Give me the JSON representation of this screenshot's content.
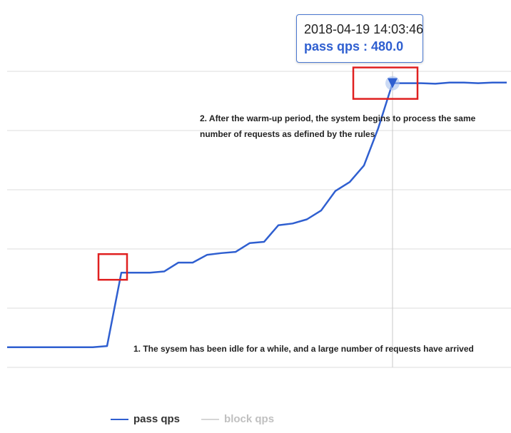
{
  "chart_data": {
    "type": "line",
    "categories": [
      null,
      null,
      null,
      null,
      null,
      null,
      null,
      null,
      null,
      null,
      null,
      null,
      null,
      null,
      null,
      null,
      null,
      null,
      null,
      null,
      null,
      null,
      null,
      null,
      null,
      null,
      null,
      null,
      null,
      null,
      null,
      null,
      null,
      null,
      null,
      null
    ],
    "series": [
      {
        "name": "pass qps",
        "color": "#2f5fd0",
        "values": [
          34,
          34,
          34,
          34,
          34,
          34,
          34,
          36,
          160,
          160,
          160,
          162,
          177,
          177,
          190,
          193,
          195,
          210,
          212,
          240,
          243,
          250,
          265,
          298,
          313,
          341,
          404,
          480,
          480,
          480,
          479,
          481,
          481,
          480,
          481,
          481
        ]
      },
      {
        "name": "block qps",
        "color": "#cccccc",
        "visible": false
      }
    ],
    "ylim": [
      0,
      500
    ],
    "yticks": [
      0,
      100,
      200,
      300,
      400,
      500
    ],
    "grid": true,
    "tooltip": {
      "index": 27,
      "date": "2018-04-19 14:03:46",
      "value_label": "480.0"
    },
    "annotations": [
      {
        "index": 8,
        "text": "1. The sysem has been idle for a while, and a large number of requests have arrived"
      },
      {
        "index": 27,
        "text": "2. After the warm-up period, the system begins to process the same number of requests as defined by the rules"
      }
    ]
  }
}
